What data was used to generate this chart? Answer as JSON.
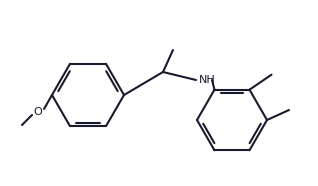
{
  "bg_color": "#ffffff",
  "line_color": "#1a1a2e",
  "text_color": "#1a1a2e",
  "label_NH": "NH",
  "label_O": "O",
  "line_width": 1.5,
  "font_size": 8,
  "figsize": [
    3.18,
    1.86
  ],
  "dpi": 100
}
